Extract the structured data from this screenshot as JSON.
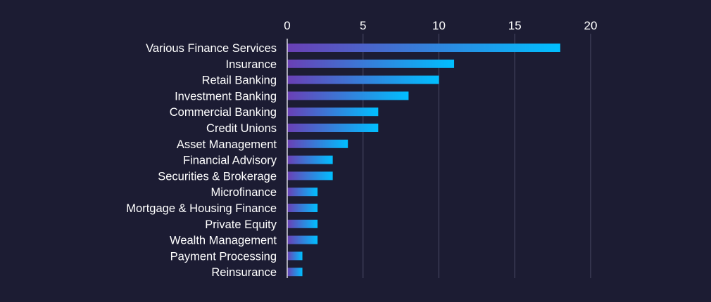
{
  "chart_data": {
    "type": "bar",
    "orientation": "horizontal",
    "categories": [
      "Various Finance Services",
      "Insurance",
      "Retail Banking",
      "Investment Banking",
      "Commercial Banking",
      "Credit Unions",
      "Asset Management",
      "Financial Advisory",
      "Securities & Brokerage",
      "Microfinance",
      "Mortgage & Housing Finance",
      "Private Equity",
      "Wealth Management",
      "Payment Processing",
      "Reinsurance"
    ],
    "values": [
      18,
      11,
      10,
      8,
      6,
      6,
      4,
      3,
      3,
      2,
      2,
      2,
      2,
      1,
      1
    ],
    "xlim": [
      0,
      20
    ],
    "xticks": [
      "0",
      "5",
      "10",
      "15",
      "20"
    ],
    "x_axis_position": "top",
    "grid": true,
    "bar_gradient": [
      "#6a3fb5",
      "#00bfff"
    ],
    "background": "#1c1c33"
  }
}
